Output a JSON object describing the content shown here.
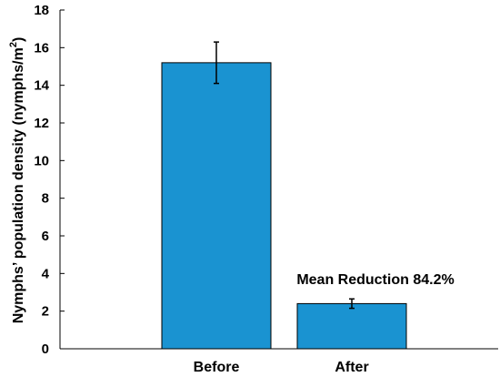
{
  "chart_data": {
    "type": "bar",
    "categories": [
      "Before",
      "After"
    ],
    "values": [
      15.2,
      2.4
    ],
    "error": [
      1.1,
      0.25
    ],
    "ylim": [
      0,
      18
    ],
    "yticks": [
      0,
      2,
      4,
      6,
      8,
      10,
      12,
      14,
      16,
      18
    ],
    "ytick_labels": [
      "0",
      "2",
      "4",
      "6",
      "8",
      "10",
      "12",
      "14",
      "16",
      "18"
    ],
    "ylabel": "Nymphs’ population density (nymphs/m",
    "ylabel_sup": "2",
    "ylabel_close": ")",
    "annotation": "Mean Reduction 84.2%",
    "bar_color": "#1a93d1",
    "grid": false
  }
}
